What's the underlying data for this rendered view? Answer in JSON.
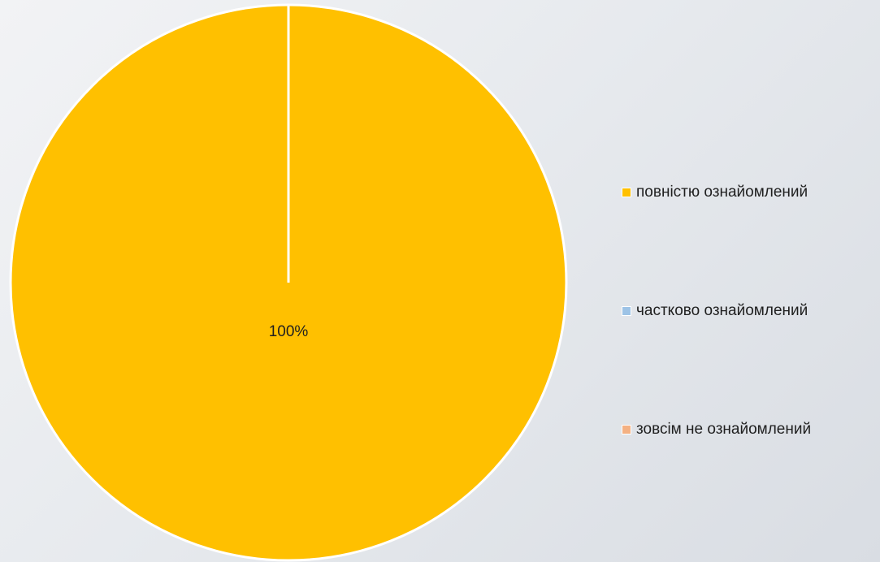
{
  "chart_data": {
    "type": "pie",
    "categories": [
      "повністю ознайомлений",
      "частково ознайомлений",
      "зовсім не ознайомлений"
    ],
    "values": [
      100,
      0,
      0
    ],
    "data_labels": [
      "100%",
      "",
      ""
    ],
    "colors": [
      "#FFC000",
      "#9DC3E6",
      "#F4B183"
    ],
    "legend_position": "right",
    "title": ""
  }
}
